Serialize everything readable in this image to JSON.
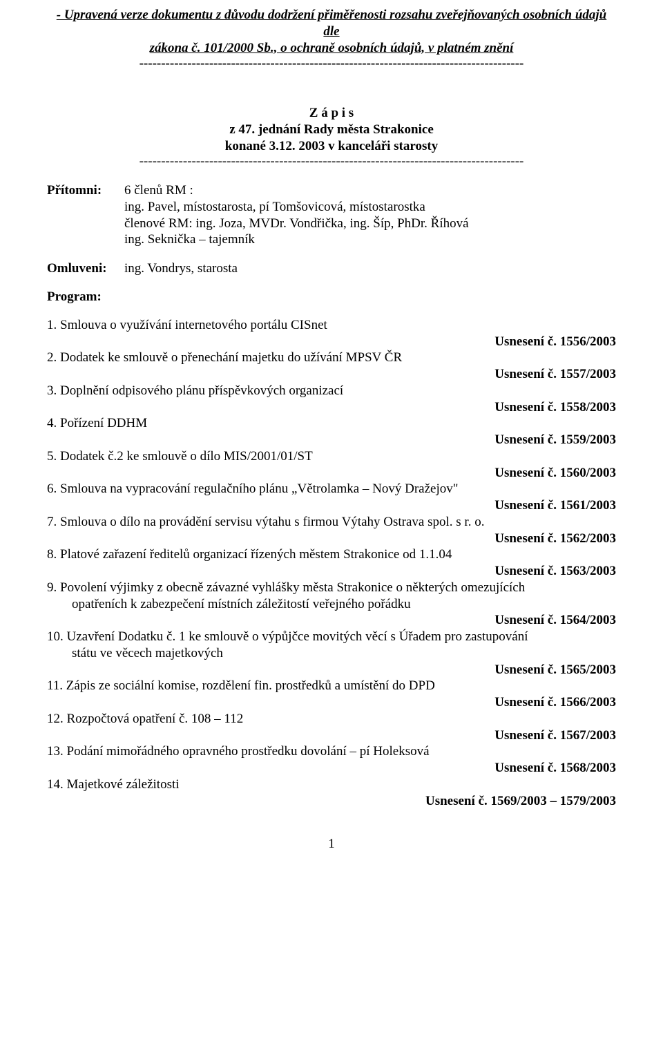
{
  "header": {
    "line1": "- Upravená verze dokumentu z důvodu dodržení přiměřenosti rozsahu zveřejňovaných osobních údajů dle",
    "line2": "zákona č. 101/2000 Sb., o ochraně osobních údajů, v platném znění",
    "divider": "----------------------------------------------------------------------------------------"
  },
  "title": {
    "line1": "Z á p i s",
    "line2": "z 47. jednání Rady města Strakonice",
    "line3": "konané 3.12. 2003 v kanceláři starosty",
    "divider": "----------------------------------------------------------------------------------------"
  },
  "attendees": {
    "label": "Přítomni:",
    "line1": "6 členů RM :",
    "line2": "ing. Pavel, místostarosta, pí Tomšovicová, místostarostka",
    "line3": "členové RM: ing. Joza, MVDr. Vondřička, ing. Šíp, PhDr. Říhová",
    "line4": "ing. Seknička – tajemník"
  },
  "excused": {
    "label": "Omluveni:",
    "content": "ing. Vondrys, starosta"
  },
  "program_label": "Program:",
  "agenda": [
    {
      "text": "1. Smlouva o využívání internetového portálu CISnet",
      "indent": false
    },
    {
      "resolution": "Usnesení č. 1556/2003"
    },
    {
      "text": "2. Dodatek ke smlouvě o přenechání majetku do užívání MPSV ČR",
      "indent": false
    },
    {
      "resolution": "Usnesení č. 1557/2003"
    },
    {
      "text": "3. Doplnění odpisového plánu příspěvkových organizací",
      "indent": false
    },
    {
      "resolution": "Usnesení č. 1558/2003"
    },
    {
      "text": "4. Pořízení DDHM",
      "indent": false
    },
    {
      "resolution": "Usnesení č. 1559/2003"
    },
    {
      "text": "5. Dodatek č.2 ke smlouvě o dílo MIS/2001/01/ST",
      "indent": false
    },
    {
      "resolution": "Usnesení č. 1560/2003"
    },
    {
      "text": "6. Smlouva na vypracování regulačního plánu „Větrolamka – Nový Dražejov\"",
      "indent": false
    },
    {
      "resolution": "Usnesení č. 1561/2003"
    },
    {
      "text": "7. Smlouva o dílo na provádění servisu výtahu s firmou Výtahy Ostrava spol. s r. o.",
      "indent": false
    },
    {
      "resolution": "Usnesení č. 1562/2003"
    },
    {
      "text": "8. Platové zařazení ředitelů organizací řízených městem Strakonice od 1.1.04",
      "indent": false
    },
    {
      "resolution": "Usnesení č. 1563/2003"
    },
    {
      "text": "9. Povolení  výjimky z obecně závazné vyhlášky města Strakonice o některých omezujících",
      "indent": false
    },
    {
      "text": "opatřeních k zabezpečení místních záležitostí veřejného pořádku",
      "indent": true
    },
    {
      "resolution": "Usnesení č. 1564/2003"
    },
    {
      "text": "10. Uzavření Dodatku č. 1 ke smlouvě o výpůjčce movitých věcí s Úřadem pro zastupování",
      "indent": false
    },
    {
      "text": "státu ve věcech majetkových",
      "indent": true
    },
    {
      "resolution": "Usnesení č. 1565/2003"
    },
    {
      "text": "11. Zápis ze sociální komise, rozdělení fin. prostředků  a umístění do DPD",
      "indent": false
    },
    {
      "resolution": "Usnesení č. 1566/2003"
    },
    {
      "text": "12. Rozpočtová opatření č. 108 – 112",
      "indent": false
    },
    {
      "resolution": "Usnesení č. 1567/2003"
    },
    {
      "text": "13. Podání mimořádného opravného prostředku dovolání – pí Holeksová",
      "indent": false
    },
    {
      "resolution": "Usnesení č. 1568/2003"
    },
    {
      "text": "14. Majetkové záležitosti",
      "indent": false
    },
    {
      "resolution": "Usnesení č. 1569/2003 – 1579/2003"
    }
  ],
  "page_number": "1"
}
